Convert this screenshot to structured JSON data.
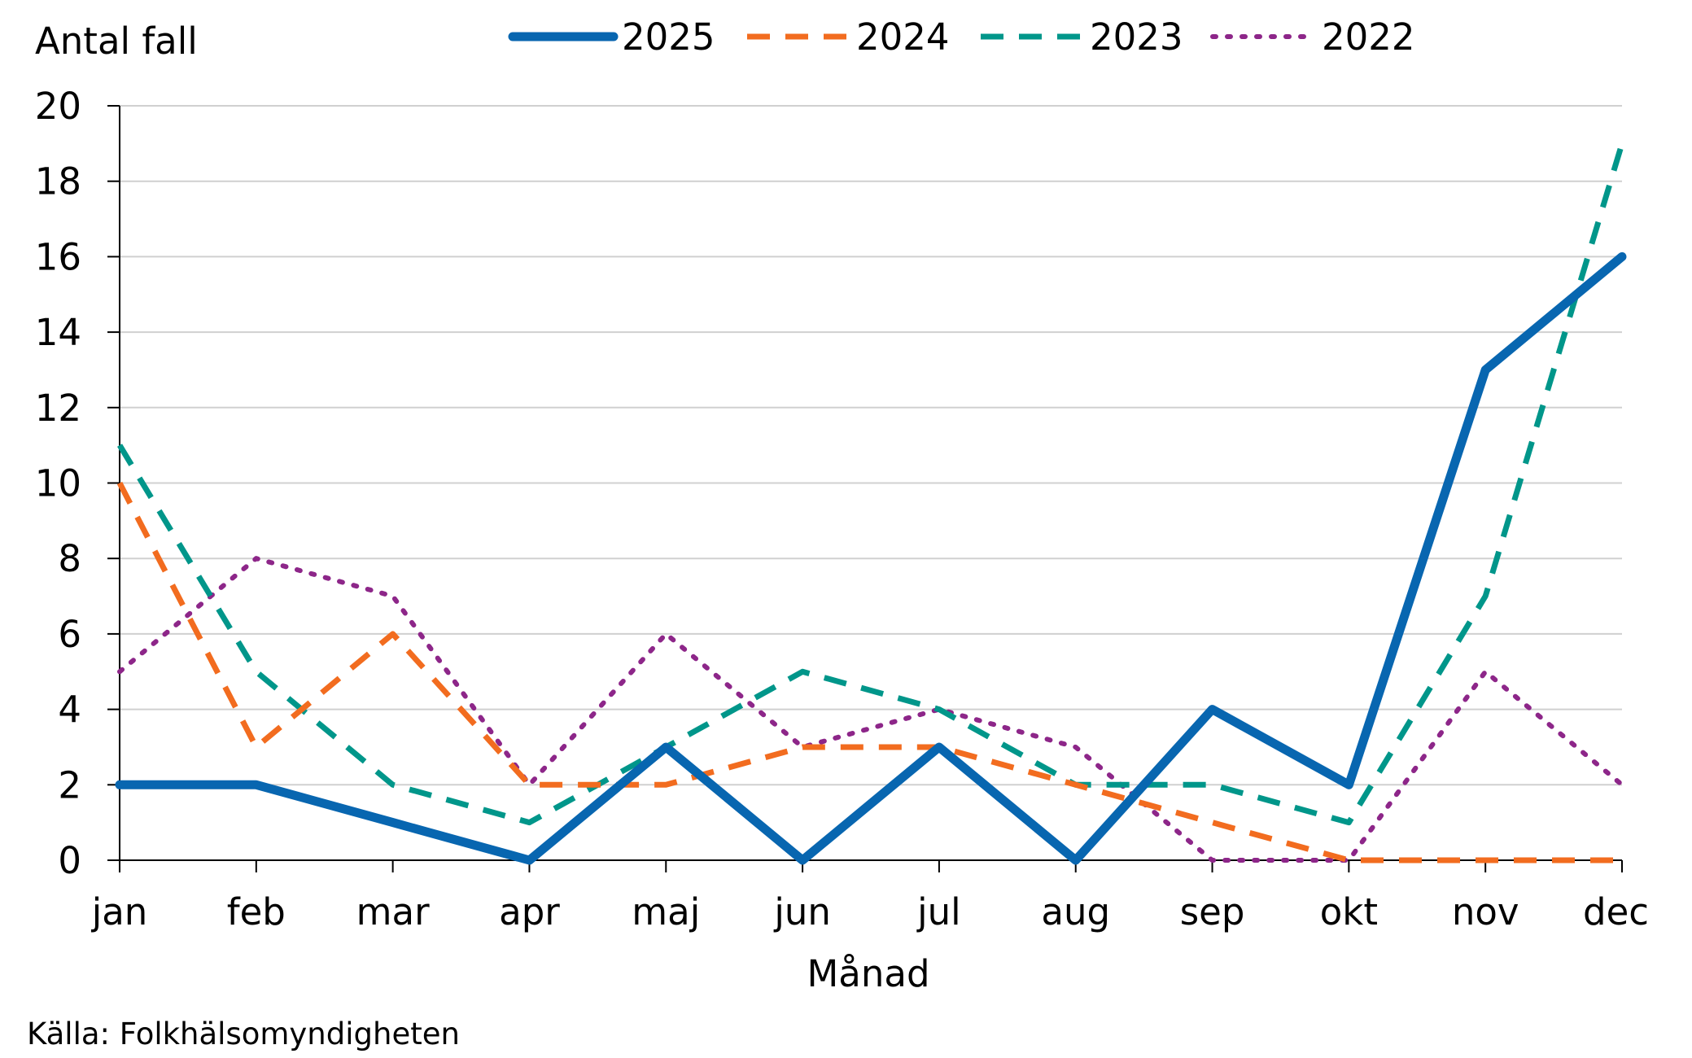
{
  "chart_data": {
    "type": "line",
    "ylabel": "Antal fall",
    "xlabel": "Månad",
    "source": "Källa: Folkhälsomyndigheten",
    "categories": [
      "jan",
      "feb",
      "mar",
      "apr",
      "maj",
      "jun",
      "jul",
      "aug",
      "sep",
      "okt",
      "nov",
      "dec"
    ],
    "ylim": [
      0,
      20
    ],
    "yticks": [
      0,
      2,
      4,
      6,
      8,
      10,
      12,
      14,
      16,
      18,
      20
    ],
    "grid": true,
    "legend_position": "top",
    "series": [
      {
        "name": "2025",
        "color": "#0866b0",
        "style": "solid",
        "values": [
          2,
          2,
          1,
          0,
          3,
          0,
          3,
          0,
          4,
          2,
          13,
          16
        ]
      },
      {
        "name": "2024",
        "color": "#f26c1f",
        "style": "dashed",
        "values": [
          10,
          3,
          6,
          2,
          2,
          3,
          3,
          2,
          1,
          0,
          0,
          0
        ]
      },
      {
        "name": "2023",
        "color": "#00968a",
        "style": "dashed",
        "values": [
          11,
          5,
          2,
          1,
          3,
          5,
          4,
          2,
          2,
          1,
          7,
          19
        ]
      },
      {
        "name": "2022",
        "color": "#8d2689",
        "style": "dotted",
        "values": [
          5,
          8,
          7,
          2,
          6,
          3,
          4,
          3,
          0,
          0,
          5,
          2
        ]
      }
    ]
  }
}
